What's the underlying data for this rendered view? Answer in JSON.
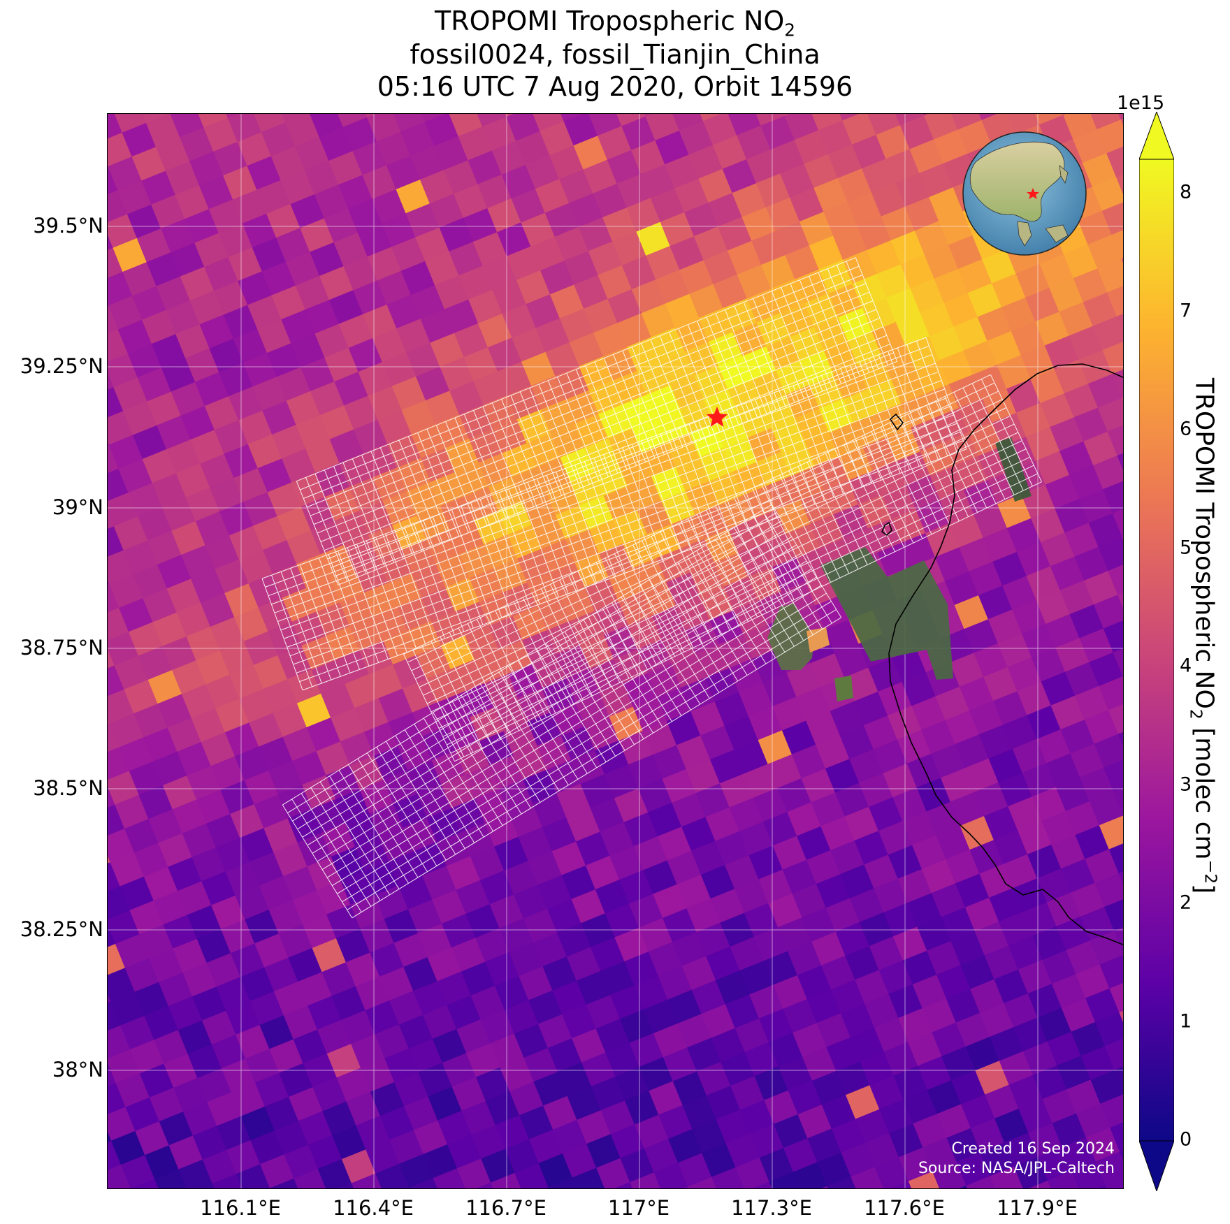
{
  "title": {
    "line1_main": "TROPOMI Tropospheric NO",
    "line1_sub": "2",
    "line2": "fossil0024, fossil_Tianjin_China",
    "line3": "05:16 UTC 7 Aug 2020, Orbit 14596"
  },
  "map": {
    "lat_ticks": [
      "39.5°N",
      "39.25°N",
      "39°N",
      "38.75°N",
      "38.5°N",
      "38.25°N",
      "38°N"
    ],
    "lon_ticks": [
      "116.1°E",
      "116.4°E",
      "116.7°E",
      "117°E",
      "117.3°E",
      "117.6°E",
      "117.9°E"
    ],
    "site_marker": "red-star",
    "inset": "globe-locator"
  },
  "credit": {
    "created": "Created 16 Sep 2024",
    "source": "Source: NASA/JPL-Caltech"
  },
  "colorbar": {
    "exponent": "1e15",
    "ticks": [
      "0",
      "1",
      "2",
      "3",
      "4",
      "5",
      "6",
      "7",
      "8"
    ],
    "label_main": "TROPOMI Tropospheric NO",
    "label_sub": "2",
    "label_unit_pre": " [molec cm",
    "label_unit_sup": "−2",
    "label_unit_post": "]",
    "colormap": [
      "#0d0887",
      "#5c01a6",
      "#9c179e",
      "#cc4778",
      "#ed7953",
      "#fdb42f",
      "#f0f921"
    ]
  }
}
